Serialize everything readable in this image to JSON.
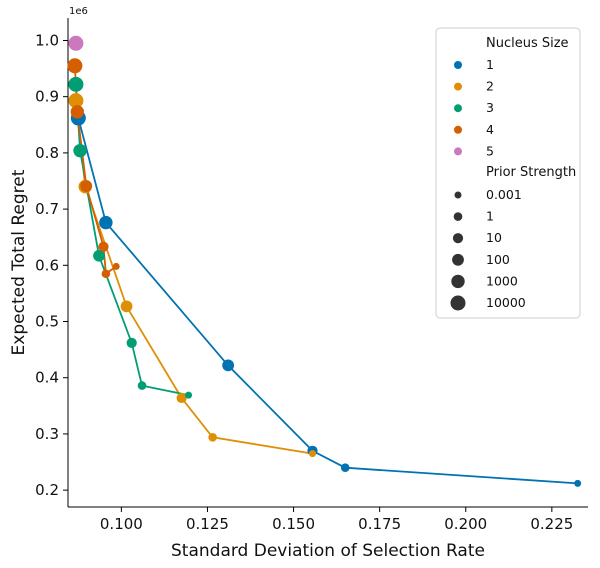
{
  "chart_data": {
    "type": "scatter",
    "title": "",
    "xlabel": "Standard Deviation of Selection Rate",
    "ylabel": "Expected Total Regret",
    "y_offset_label": "1e6",
    "xlim": [
      0.0845,
      0.2355
    ],
    "ylim": [
      170000,
      1040000
    ],
    "x_ticks": [
      0.1,
      0.125,
      0.15,
      0.175,
      0.2,
      0.225
    ],
    "x_tick_labels": [
      "0.100",
      "0.125",
      "0.150",
      "0.175",
      "0.200",
      "0.225"
    ],
    "y_ticks": [
      200000,
      300000,
      400000,
      500000,
      600000,
      700000,
      800000,
      900000,
      1000000
    ],
    "y_tick_labels": [
      "0.2",
      "0.3",
      "0.4",
      "0.5",
      "0.6",
      "0.7",
      "0.8",
      "0.9",
      "1.0"
    ],
    "grid": false,
    "legend_position": "top-right",
    "legend": {
      "hue_title": "Nucleus Size",
      "size_title": "Prior Strength",
      "hue_entries": [
        {
          "label": "1",
          "color": "#0173b2"
        },
        {
          "label": "2",
          "color": "#de8f05"
        },
        {
          "label": "3",
          "color": "#029e73"
        },
        {
          "label": "4",
          "color": "#d55e00"
        },
        {
          "label": "5",
          "color": "#cc78bc"
        }
      ],
      "size_entries": [
        {
          "label": "0.001",
          "size": 1
        },
        {
          "label": "1",
          "size": 2
        },
        {
          "label": "10",
          "size": 3
        },
        {
          "label": "100",
          "size": 4
        },
        {
          "label": "1000",
          "size": 5
        },
        {
          "label": "10000",
          "size": 6
        }
      ],
      "size_color": "#333333"
    },
    "series": [
      {
        "name": "1",
        "color": "#0173b2",
        "points": [
          {
            "x": 0.2325,
            "y": 212000,
            "size": 1
          },
          {
            "x": 0.165,
            "y": 240000,
            "size": 2
          },
          {
            "x": 0.1555,
            "y": 270000,
            "size": 3
          },
          {
            "x": 0.131,
            "y": 422000,
            "size": 4
          },
          {
            "x": 0.0955,
            "y": 676000,
            "size": 5
          },
          {
            "x": 0.0875,
            "y": 862000,
            "size": 6
          }
        ]
      },
      {
        "name": "2",
        "color": "#de8f05",
        "points": [
          {
            "x": 0.1555,
            "y": 265000,
            "size": 1
          },
          {
            "x": 0.1265,
            "y": 294000,
            "size": 2
          },
          {
            "x": 0.1175,
            "y": 364000,
            "size": 3
          },
          {
            "x": 0.1015,
            "y": 527000,
            "size": 4
          },
          {
            "x": 0.0895,
            "y": 740000,
            "size": 5
          },
          {
            "x": 0.0868,
            "y": 893000,
            "size": 6
          }
        ]
      },
      {
        "name": "3",
        "color": "#029e73",
        "points": [
          {
            "x": 0.1195,
            "y": 369000,
            "size": 1
          },
          {
            "x": 0.106,
            "y": 386000,
            "size": 2
          },
          {
            "x": 0.103,
            "y": 462000,
            "size": 3
          },
          {
            "x": 0.0935,
            "y": 617000,
            "size": 4
          },
          {
            "x": 0.088,
            "y": 804000,
            "size": 5
          },
          {
            "x": 0.0868,
            "y": 922000,
            "size": 6
          }
        ]
      },
      {
        "name": "4",
        "color": "#d55e00",
        "points": [
          {
            "x": 0.0985,
            "y": 598000,
            "size": 1
          },
          {
            "x": 0.0955,
            "y": 585000,
            "size": 2
          },
          {
            "x": 0.0948,
            "y": 633000,
            "size": 3
          },
          {
            "x": 0.0898,
            "y": 741000,
            "size": 4
          },
          {
            "x": 0.0872,
            "y": 873000,
            "size": 5
          },
          {
            "x": 0.0865,
            "y": 955000,
            "size": 6
          }
        ]
      },
      {
        "name": "5",
        "color": "#cc78bc",
        "points": [
          {
            "x": 0.0868,
            "y": 995000,
            "size": 6
          }
        ]
      }
    ]
  }
}
